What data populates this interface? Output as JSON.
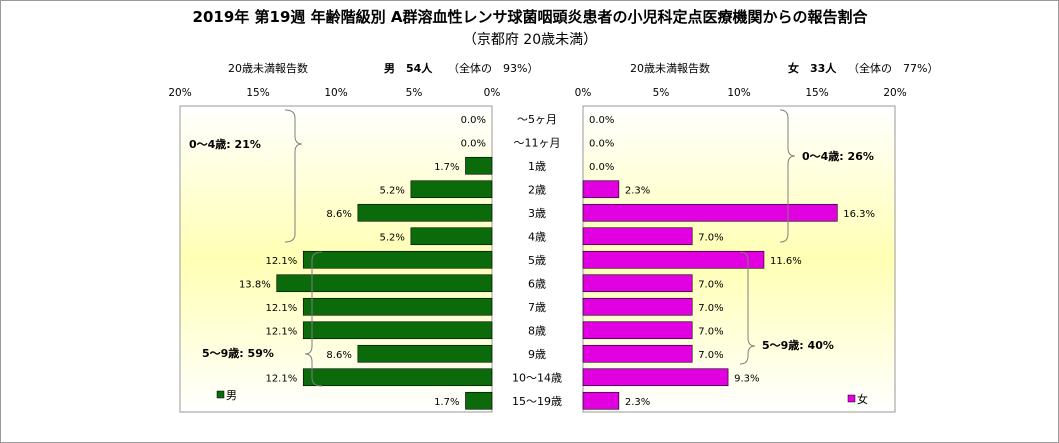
{
  "header": {
    "title": "2019年 第19週 年齢階級別 A群溶血性レンサ球菌咽頭炎患者の小児科定点医療機関からの報告割合",
    "subtitle": "（京都府 20歳未満）",
    "left_label": "20歳未満報告数",
    "left_stat": "男　54人",
    "left_share": "（全体の　93%）",
    "right_label": "20歳未満報告数",
    "right_stat": "女　33人",
    "right_share": "（全体の　77%）"
  },
  "colors": {
    "male": "#0b6b0b",
    "female": "#e000e0",
    "plot_bg_top": "#ffffff",
    "plot_bg_mid": "#ffffb0"
  },
  "chart_data": {
    "type": "bar",
    "orientation": "horizontal-population-pyramid",
    "categories": [
      "～5ヶ月",
      "～11ヶ月",
      "1歳",
      "2歳",
      "3歳",
      "4歳",
      "5歳",
      "6歳",
      "7歳",
      "8歳",
      "9歳",
      "10～14歳",
      "15～19歳"
    ],
    "series": [
      {
        "name": "男",
        "values": [
          0.0,
          0.0,
          1.7,
          5.2,
          8.6,
          5.2,
          12.1,
          13.8,
          12.1,
          12.1,
          8.6,
          12.1,
          1.7
        ],
        "labels": [
          "0.0%",
          "0.0%",
          "1.7%",
          "5.2%",
          "8.6%",
          "5.2%",
          "12.1%",
          "13.8%",
          "12.1%",
          "12.1%",
          "8.6%",
          "12.1%",
          "1.7%"
        ]
      },
      {
        "name": "女",
        "values": [
          0.0,
          0.0,
          0.0,
          2.3,
          16.3,
          7.0,
          11.6,
          7.0,
          7.0,
          7.0,
          7.0,
          9.3,
          2.3
        ],
        "labels": [
          "0.0%",
          "0.0%",
          "0.0%",
          "2.3%",
          "16.3%",
          "7.0%",
          "11.6%",
          "7.0%",
          "7.0%",
          "7.0%",
          "7.0%",
          "9.3%",
          "2.3%"
        ]
      }
    ],
    "xlim": [
      0,
      20
    ],
    "left_ticks": [
      "20%",
      "15%",
      "10%",
      "5%",
      "0%"
    ],
    "right_ticks": [
      "0%",
      "5%",
      "10%",
      "15%",
      "20%"
    ],
    "group_labels": {
      "male_0_4": "0～4歳: 21%",
      "male_5_9": "5～9歳: 59%",
      "female_0_4": "0～4歳: 26%",
      "female_5_9": "5～9歳: 40%"
    },
    "legend": {
      "male": "男",
      "female": "女"
    }
  }
}
